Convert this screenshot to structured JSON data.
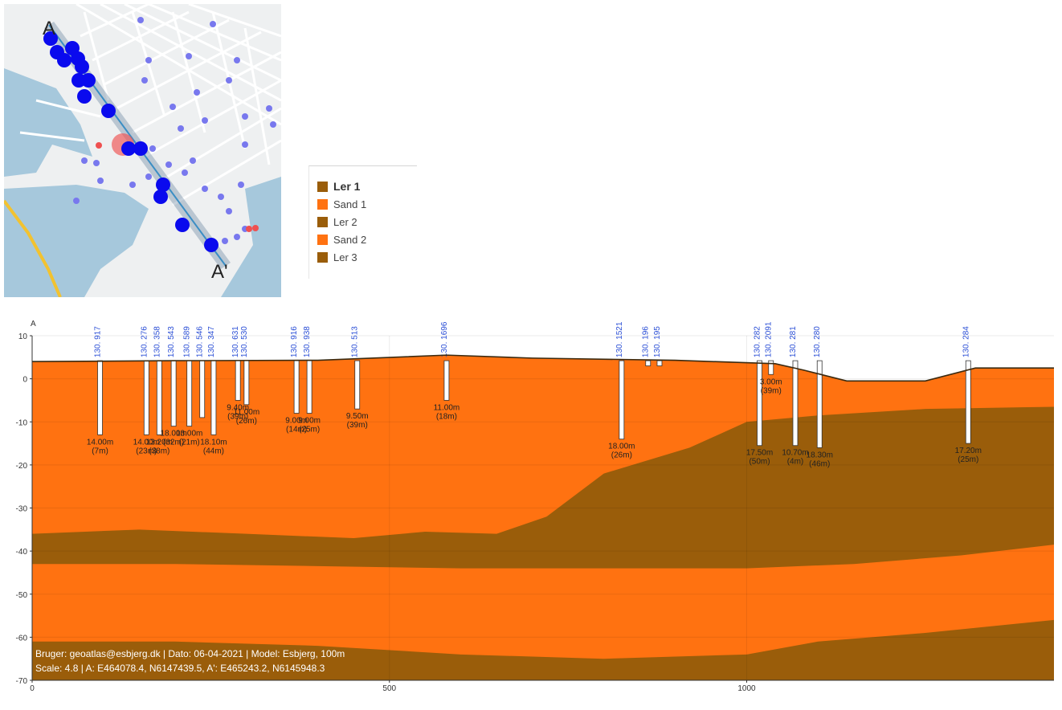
{
  "legend": {
    "items": [
      {
        "label": "Ler 1",
        "color": "#9a5d0a",
        "bold": true
      },
      {
        "label": "Sand 1",
        "color": "#ff7211",
        "bold": false
      },
      {
        "label": "Ler 2",
        "color": "#9a5d0a",
        "bold": false
      },
      {
        "label": "Sand 2",
        "color": "#ff7211",
        "bold": false
      },
      {
        "label": "Ler 3",
        "color": "#9a5d0a",
        "bold": false
      }
    ]
  },
  "map": {
    "label_a": "A",
    "label_a_prime": "A'",
    "colors": {
      "water": "#a6c8dc",
      "land": "#eef0f1",
      "street": "#ffffff",
      "road_yellow": "#f2c230",
      "line": "#3b8ec4",
      "boring": "#0a0aee",
      "boring_faint": "#7878ee",
      "highlight": "#ef5050"
    }
  },
  "chart_data": {
    "type": "area",
    "title": "",
    "corner_label": "A",
    "xlabel": "",
    "ylabel": "",
    "xlim": [
      0,
      1430
    ],
    "ylim": [
      -70,
      10
    ],
    "xticks": [
      0,
      500,
      1000
    ],
    "yticks": [
      10,
      0,
      -10,
      -20,
      -30,
      -40,
      -50,
      -60,
      -70
    ],
    "grid": true,
    "layer_colors": {
      "clay": "#9a5d0a",
      "sand": "#ff7211",
      "terrain": "#3b2a10"
    },
    "layers": [
      {
        "name": "Sand 1",
        "top": [
          [
            0,
            4
          ],
          [
            200,
            4.2
          ],
          [
            400,
            4.3
          ],
          [
            580,
            5.5
          ],
          [
            700,
            4.8
          ],
          [
            900,
            4.3
          ],
          [
            1040,
            3.5
          ],
          [
            1080,
            2
          ],
          [
            1140,
            -0.5
          ],
          [
            1250,
            -0.5
          ],
          [
            1320,
            2.5
          ],
          [
            1430,
            2.5
          ]
        ]
      },
      {
        "name": "Ler 2",
        "top": [
          [
            0,
            -36
          ],
          [
            150,
            -35
          ],
          [
            300,
            -36
          ],
          [
            450,
            -37
          ],
          [
            550,
            -35.5
          ],
          [
            650,
            -36
          ],
          [
            720,
            -32
          ],
          [
            800,
            -22
          ],
          [
            860,
            -19
          ],
          [
            920,
            -16
          ],
          [
            1000,
            -10
          ],
          [
            1100,
            -8.5
          ],
          [
            1250,
            -7
          ],
          [
            1430,
            -6.5
          ]
        ]
      },
      {
        "name": "Sand 2",
        "top": [
          [
            0,
            -43
          ],
          [
            200,
            -43
          ],
          [
            400,
            -43.5
          ],
          [
            600,
            -44
          ],
          [
            800,
            -44
          ],
          [
            1000,
            -44
          ],
          [
            1150,
            -43
          ],
          [
            1300,
            -41
          ],
          [
            1430,
            -38.5
          ]
        ]
      },
      {
        "name": "Ler 3",
        "top": [
          [
            0,
            -61
          ],
          [
            200,
            -61
          ],
          [
            400,
            -62
          ],
          [
            600,
            -64
          ],
          [
            800,
            -65
          ],
          [
            1000,
            -64
          ],
          [
            1100,
            -61
          ],
          [
            1250,
            -59
          ],
          [
            1430,
            -56
          ]
        ]
      }
    ],
    "boreholes": [
      {
        "id": "130. 917",
        "x": 95,
        "bottom": -13,
        "depth_label": "14.00m",
        "age_label": "(7m)"
      },
      {
        "id": "130. 276",
        "x": 160,
        "bottom": -13,
        "depth_label": "14.00m",
        "age_label": "(23m)"
      },
      {
        "id": "130. 358",
        "x": 178,
        "bottom": -13,
        "depth_label": "13.20m",
        "age_label": "(38m)"
      },
      {
        "id": "130. 543",
        "x": 198,
        "bottom": -11,
        "depth_label": "18.00m",
        "age_label": "(32m)"
      },
      {
        "id": "130. 589",
        "x": 220,
        "bottom": -11,
        "depth_label": "13.00m",
        "age_label": "(21m)"
      },
      {
        "id": "130. 546",
        "x": 238,
        "bottom": -9,
        "depth_label": "",
        "age_label": ""
      },
      {
        "id": "130. 347",
        "x": 254,
        "bottom": -13,
        "depth_label": "18.10m",
        "age_label": "(44m)"
      },
      {
        "id": "130. 631",
        "x": 288,
        "bottom": -5,
        "depth_label": "9.40m",
        "age_label": "(39m)"
      },
      {
        "id": "130. 530",
        "x": 300,
        "bottom": -6,
        "depth_label": "11.00m",
        "age_label": "(26m)"
      },
      {
        "id": "130. 916",
        "x": 370,
        "bottom": -8,
        "depth_label": "9.00m",
        "age_label": "(14m)"
      },
      {
        "id": "130. 938",
        "x": 388,
        "bottom": -8,
        "depth_label": "9.00m",
        "age_label": "(25m)"
      },
      {
        "id": "130. 513",
        "x": 455,
        "bottom": -7,
        "depth_label": "9.50m",
        "age_label": "(39m)"
      },
      {
        "id": "130. 1696",
        "x": 580,
        "bottom": -5,
        "depth_label": "11.00m",
        "age_label": "(18m)"
      },
      {
        "id": "130. 1521",
        "x": 825,
        "bottom": -14,
        "depth_label": "18.00m",
        "age_label": "(26m)"
      },
      {
        "id": "130. 196",
        "x": 862,
        "bottom": 3,
        "depth_label": "",
        "age_label": ""
      },
      {
        "id": "130. 195",
        "x": 878,
        "bottom": 3,
        "depth_label": "",
        "age_label": ""
      },
      {
        "id": "130. 282",
        "x": 1018,
        "bottom": -15.5,
        "depth_label": "17.50m",
        "age_label": "(50m)"
      },
      {
        "id": "130. 2091",
        "x": 1034,
        "bottom": 1,
        "depth_label": "3.00m",
        "age_label": "(39m)"
      },
      {
        "id": "130. 281",
        "x": 1068,
        "bottom": -15.5,
        "depth_label": "10.70m",
        "age_label": "(4m)"
      },
      {
        "id": "130. 280",
        "x": 1102,
        "bottom": -16,
        "depth_label": "18.30m",
        "age_label": "(46m)"
      },
      {
        "id": "130. 284",
        "x": 1310,
        "bottom": -15,
        "depth_label": "17.20m",
        "age_label": "(25m)"
      }
    ],
    "footer_line1": "Bruger: geoatlas@esbjerg.dk | Dato: 06-04-2021 | Model: Esbjerg, 100m",
    "footer_line2": "Scale: 4.8 | A: E464078.4, N6147439.5, A': E465243.2, N6145948.3"
  }
}
